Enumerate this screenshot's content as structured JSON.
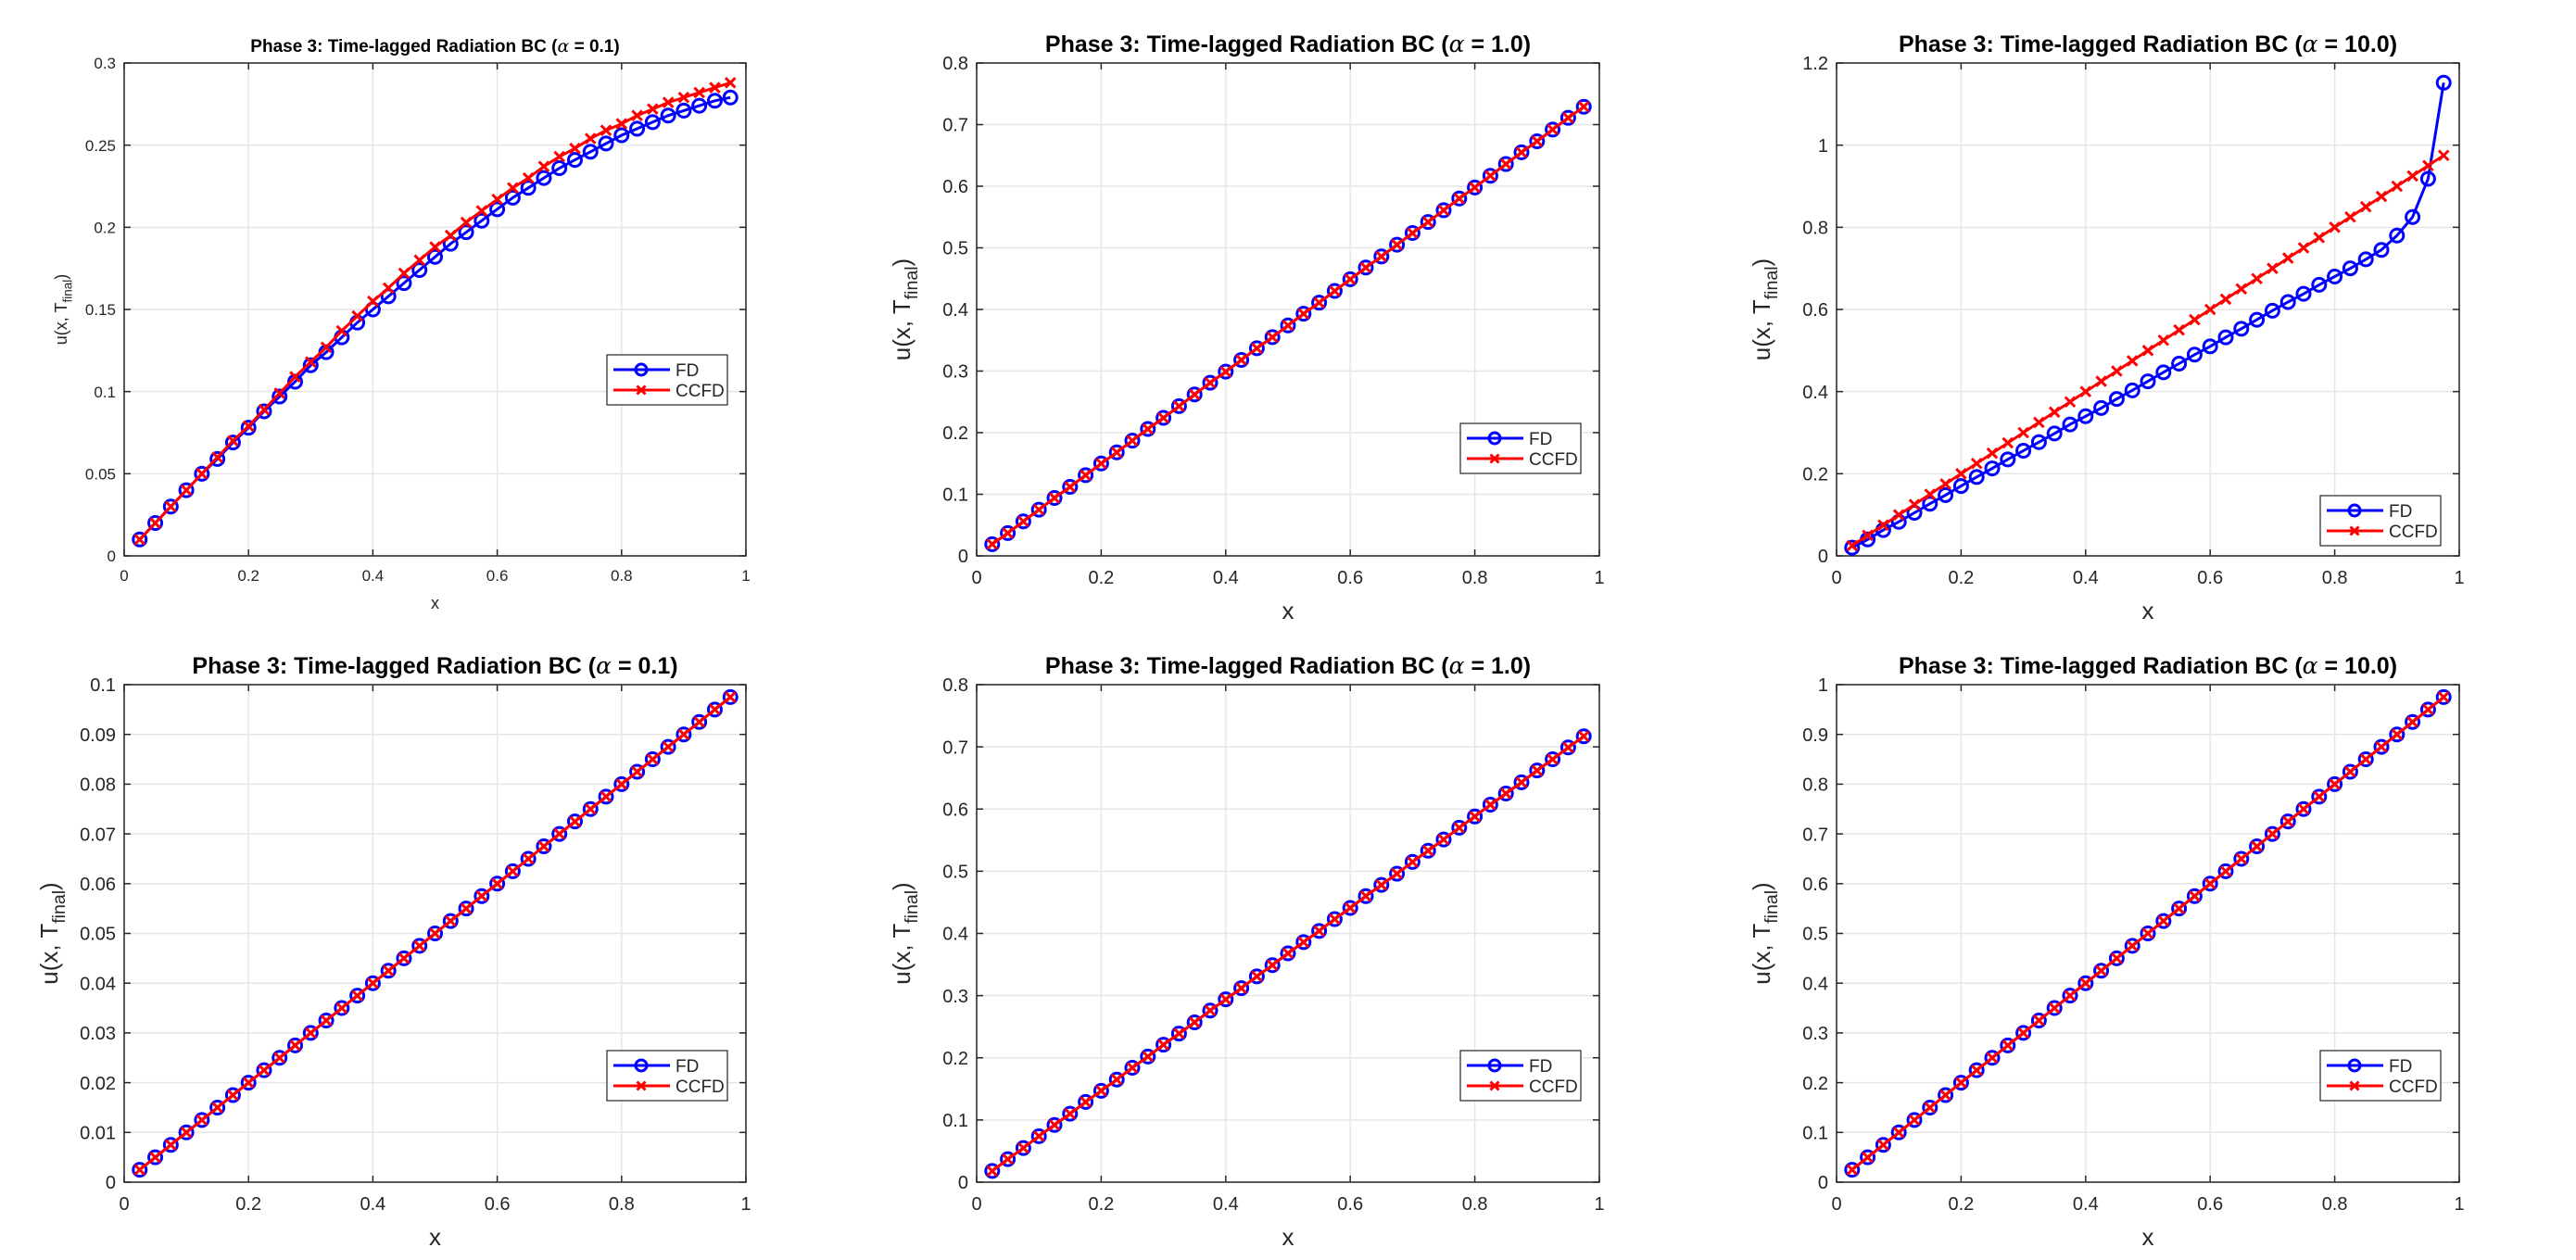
{
  "legend_labels": [
    "FD",
    "CCFD"
  ],
  "colors": {
    "FD": "#0000ff",
    "CCFD": "#ff0000",
    "grid": "#e6e6e6",
    "axis": "#262626"
  },
  "chart_data": [
    {
      "type": "line",
      "title_parts": [
        "Phase 3: Time-lagged Radiation BC (",
        "α",
        " = 0.1)"
      ],
      "xlabel": "x",
      "ylabel_parts": [
        "u(x, T",
        "final",
        ")"
      ],
      "xlim": [
        0,
        1
      ],
      "ylim": [
        0,
        0.3
      ],
      "xticks": [
        "0",
        "0.2",
        "0.4",
        "0.6",
        "0.8",
        "1"
      ],
      "yticks": [
        "0",
        "0.05",
        "0.1",
        "0.15",
        "0.2",
        "0.25",
        "0.3"
      ],
      "grid": true,
      "legend_position": "right",
      "x": [
        0.025,
        0.05,
        0.075,
        0.1,
        0.125,
        0.15,
        0.175,
        0.2,
        0.225,
        0.25,
        0.275,
        0.3,
        0.325,
        0.35,
        0.375,
        0.4,
        0.425,
        0.45,
        0.475,
        0.5,
        0.525,
        0.55,
        0.575,
        0.6,
        0.625,
        0.65,
        0.675,
        0.7,
        0.725,
        0.75,
        0.775,
        0.8,
        0.825,
        0.85,
        0.875,
        0.9,
        0.925,
        0.95,
        0.975
      ],
      "series": [
        {
          "name": "FD",
          "marker": "circle",
          "values": [
            0.01,
            0.02,
            0.03,
            0.04,
            0.05,
            0.059,
            0.069,
            0.078,
            0.088,
            0.097,
            0.106,
            0.116,
            0.124,
            0.133,
            0.142,
            0.15,
            0.158,
            0.166,
            0.174,
            0.182,
            0.19,
            0.197,
            0.204,
            0.211,
            0.218,
            0.224,
            0.23,
            0.236,
            0.241,
            0.246,
            0.251,
            0.256,
            0.26,
            0.264,
            0.268,
            0.271,
            0.274,
            0.277,
            0.279
          ]
        },
        {
          "name": "CCFD",
          "marker": "x",
          "values": [
            0.01,
            0.02,
            0.03,
            0.04,
            0.05,
            0.06,
            0.07,
            0.079,
            0.089,
            0.099,
            0.109,
            0.118,
            0.127,
            0.137,
            0.146,
            0.155,
            0.163,
            0.172,
            0.18,
            0.188,
            0.195,
            0.203,
            0.21,
            0.217,
            0.224,
            0.23,
            0.237,
            0.243,
            0.248,
            0.254,
            0.259,
            0.263,
            0.268,
            0.272,
            0.276,
            0.279,
            0.282,
            0.285,
            0.288
          ]
        }
      ]
    },
    {
      "type": "line",
      "title_parts": [
        "Phase 3: Time-lagged Radiation BC (",
        "α",
        " = 1.0)"
      ],
      "xlabel": "x",
      "ylabel_parts": [
        "u(x, T",
        "final",
        ")"
      ],
      "xlim": [
        0,
        1
      ],
      "ylim": [
        0,
        0.8
      ],
      "xticks": [
        "0",
        "0.2",
        "0.4",
        "0.6",
        "0.8",
        "1"
      ],
      "yticks": [
        "0",
        "0.1",
        "0.2",
        "0.3",
        "0.4",
        "0.5",
        "0.6",
        "0.7",
        "0.8"
      ],
      "grid": true,
      "legend_position": "right",
      "x": [
        0.025,
        0.05,
        0.075,
        0.1,
        0.125,
        0.15,
        0.175,
        0.2,
        0.225,
        0.25,
        0.275,
        0.3,
        0.325,
        0.35,
        0.375,
        0.4,
        0.425,
        0.45,
        0.475,
        0.5,
        0.525,
        0.55,
        0.575,
        0.6,
        0.625,
        0.65,
        0.675,
        0.7,
        0.725,
        0.75,
        0.775,
        0.8,
        0.825,
        0.85,
        0.875,
        0.9,
        0.925,
        0.95,
        0.975
      ],
      "series": [
        {
          "name": "FD",
          "marker": "circle",
          "values": [
            0.019,
            0.037,
            0.056,
            0.075,
            0.094,
            0.112,
            0.131,
            0.15,
            0.168,
            0.187,
            0.206,
            0.224,
            0.243,
            0.262,
            0.281,
            0.299,
            0.318,
            0.337,
            0.355,
            0.374,
            0.393,
            0.411,
            0.43,
            0.449,
            0.468,
            0.486,
            0.505,
            0.524,
            0.542,
            0.561,
            0.58,
            0.598,
            0.617,
            0.636,
            0.655,
            0.673,
            0.692,
            0.711,
            0.729
          ]
        },
        {
          "name": "CCFD",
          "marker": "x",
          "values": [
            0.019,
            0.037,
            0.056,
            0.075,
            0.094,
            0.112,
            0.131,
            0.15,
            0.168,
            0.187,
            0.206,
            0.224,
            0.243,
            0.262,
            0.281,
            0.299,
            0.318,
            0.337,
            0.355,
            0.374,
            0.393,
            0.411,
            0.43,
            0.449,
            0.468,
            0.486,
            0.505,
            0.524,
            0.542,
            0.561,
            0.58,
            0.598,
            0.617,
            0.636,
            0.655,
            0.673,
            0.692,
            0.711,
            0.729
          ]
        }
      ]
    },
    {
      "type": "line",
      "title_parts": [
        "Phase 3: Time-lagged Radiation BC (",
        "α",
        " = 10.0)"
      ],
      "xlabel": "x",
      "ylabel_parts": [
        "u(x, T",
        "final",
        ")"
      ],
      "xlim": [
        0,
        1
      ],
      "ylim": [
        0,
        1.2
      ],
      "xticks": [
        "0",
        "0.2",
        "0.4",
        "0.6",
        "0.8",
        "1"
      ],
      "yticks": [
        "0",
        "0.2",
        "0.4",
        "0.6",
        "0.8",
        "1",
        "1.2"
      ],
      "grid": true,
      "legend_position": "bottom-right",
      "x": [
        0.025,
        0.05,
        0.075,
        0.1,
        0.125,
        0.15,
        0.175,
        0.2,
        0.225,
        0.25,
        0.275,
        0.3,
        0.325,
        0.35,
        0.375,
        0.4,
        0.425,
        0.45,
        0.475,
        0.5,
        0.525,
        0.55,
        0.575,
        0.6,
        0.625,
        0.65,
        0.675,
        0.7,
        0.725,
        0.75,
        0.775,
        0.8,
        0.825,
        0.85,
        0.875,
        0.9,
        0.925,
        0.95,
        0.975
      ],
      "series": [
        {
          "name": "FD",
          "marker": "circle",
          "values": [
            0.02,
            0.04,
            0.063,
            0.083,
            0.105,
            0.127,
            0.148,
            0.17,
            0.192,
            0.213,
            0.235,
            0.256,
            0.277,
            0.298,
            0.32,
            0.34,
            0.36,
            0.382,
            0.403,
            0.425,
            0.447,
            0.468,
            0.49,
            0.51,
            0.532,
            0.553,
            0.575,
            0.597,
            0.618,
            0.638,
            0.66,
            0.68,
            0.7,
            0.722,
            0.745,
            0.78,
            0.825,
            0.918,
            1.152
          ]
        },
        {
          "name": "CCFD",
          "marker": "x",
          "values": [
            0.025,
            0.05,
            0.075,
            0.1,
            0.125,
            0.15,
            0.175,
            0.2,
            0.225,
            0.25,
            0.275,
            0.3,
            0.325,
            0.35,
            0.375,
            0.4,
            0.425,
            0.45,
            0.475,
            0.5,
            0.525,
            0.55,
            0.575,
            0.6,
            0.625,
            0.65,
            0.675,
            0.7,
            0.725,
            0.75,
            0.775,
            0.8,
            0.825,
            0.85,
            0.875,
            0.9,
            0.925,
            0.95,
            0.975
          ]
        }
      ]
    },
    {
      "type": "line",
      "title_parts": [
        "Phase 3: Time-lagged Radiation BC (",
        "α",
        " = 0.1)"
      ],
      "xlabel": "x",
      "ylabel_parts": [
        "u(x, T",
        "final",
        ")"
      ],
      "xlim": [
        0,
        1
      ],
      "ylim": [
        0,
        0.1
      ],
      "xticks": [
        "0",
        "0.2",
        "0.4",
        "0.6",
        "0.8",
        "1"
      ],
      "yticks": [
        "0",
        "0.01",
        "0.02",
        "0.03",
        "0.04",
        "0.05",
        "0.06",
        "0.07",
        "0.08",
        "0.09",
        "0.1"
      ],
      "grid": true,
      "legend_position": "right",
      "x": [
        0.025,
        0.05,
        0.075,
        0.1,
        0.125,
        0.15,
        0.175,
        0.2,
        0.225,
        0.25,
        0.275,
        0.3,
        0.325,
        0.35,
        0.375,
        0.4,
        0.425,
        0.45,
        0.475,
        0.5,
        0.525,
        0.55,
        0.575,
        0.6,
        0.625,
        0.65,
        0.675,
        0.7,
        0.725,
        0.75,
        0.775,
        0.8,
        0.825,
        0.85,
        0.875,
        0.9,
        0.925,
        0.95,
        0.975
      ],
      "series": [
        {
          "name": "FD",
          "marker": "circle",
          "values": [
            0.0025,
            0.005,
            0.0075,
            0.01,
            0.0125,
            0.015,
            0.0175,
            0.02,
            0.0225,
            0.025,
            0.0275,
            0.03,
            0.0325,
            0.035,
            0.0375,
            0.04,
            0.0425,
            0.045,
            0.0475,
            0.05,
            0.0525,
            0.055,
            0.0575,
            0.06,
            0.0625,
            0.065,
            0.0675,
            0.07,
            0.0725,
            0.075,
            0.0775,
            0.08,
            0.0825,
            0.085,
            0.0875,
            0.09,
            0.0925,
            0.095,
            0.0975
          ]
        },
        {
          "name": "CCFD",
          "marker": "x",
          "values": [
            0.0025,
            0.005,
            0.0075,
            0.01,
            0.0125,
            0.015,
            0.0175,
            0.02,
            0.0225,
            0.025,
            0.0275,
            0.03,
            0.0325,
            0.035,
            0.0375,
            0.04,
            0.0425,
            0.045,
            0.0475,
            0.05,
            0.0525,
            0.055,
            0.0575,
            0.06,
            0.0625,
            0.065,
            0.0675,
            0.07,
            0.0725,
            0.075,
            0.0775,
            0.08,
            0.0825,
            0.085,
            0.0875,
            0.09,
            0.0925,
            0.095,
            0.0975
          ]
        }
      ]
    },
    {
      "type": "line",
      "title_parts": [
        "Phase 3: Time-lagged Radiation BC (",
        "α",
        " = 1.0)"
      ],
      "xlabel": "x",
      "ylabel_parts": [
        "u(x, T",
        "final",
        ")"
      ],
      "xlim": [
        0,
        1
      ],
      "ylim": [
        0,
        0.8
      ],
      "xticks": [
        "0",
        "0.2",
        "0.4",
        "0.6",
        "0.8",
        "1"
      ],
      "yticks": [
        "0",
        "0.1",
        "0.2",
        "0.3",
        "0.4",
        "0.5",
        "0.6",
        "0.7",
        "0.8"
      ],
      "grid": true,
      "legend_position": "right",
      "x": [
        0.025,
        0.05,
        0.075,
        0.1,
        0.125,
        0.15,
        0.175,
        0.2,
        0.225,
        0.25,
        0.275,
        0.3,
        0.325,
        0.35,
        0.375,
        0.4,
        0.425,
        0.45,
        0.475,
        0.5,
        0.525,
        0.55,
        0.575,
        0.6,
        0.625,
        0.65,
        0.675,
        0.7,
        0.725,
        0.75,
        0.775,
        0.8,
        0.825,
        0.85,
        0.875,
        0.9,
        0.925,
        0.95,
        0.975
      ],
      "series": [
        {
          "name": "FD",
          "marker": "circle",
          "values": [
            0.018,
            0.037,
            0.055,
            0.074,
            0.092,
            0.11,
            0.129,
            0.147,
            0.165,
            0.184,
            0.202,
            0.221,
            0.239,
            0.257,
            0.276,
            0.294,
            0.312,
            0.331,
            0.349,
            0.368,
            0.386,
            0.404,
            0.423,
            0.441,
            0.46,
            0.478,
            0.496,
            0.515,
            0.533,
            0.551,
            0.57,
            0.588,
            0.607,
            0.625,
            0.643,
            0.662,
            0.68,
            0.699,
            0.717
          ]
        },
        {
          "name": "CCFD",
          "marker": "x",
          "values": [
            0.018,
            0.037,
            0.055,
            0.074,
            0.092,
            0.11,
            0.129,
            0.147,
            0.165,
            0.184,
            0.202,
            0.221,
            0.239,
            0.257,
            0.276,
            0.294,
            0.312,
            0.331,
            0.349,
            0.368,
            0.386,
            0.404,
            0.423,
            0.441,
            0.46,
            0.478,
            0.496,
            0.515,
            0.533,
            0.551,
            0.57,
            0.588,
            0.607,
            0.625,
            0.643,
            0.662,
            0.68,
            0.699,
            0.717
          ]
        }
      ]
    },
    {
      "type": "line",
      "title_parts": [
        "Phase 3: Time-lagged Radiation BC (",
        "α",
        " = 10.0)"
      ],
      "xlabel": "x",
      "ylabel_parts": [
        "u(x, T",
        "final",
        ")"
      ],
      "xlim": [
        0,
        1
      ],
      "ylim": [
        0,
        1
      ],
      "xticks": [
        "0",
        "0.2",
        "0.4",
        "0.6",
        "0.8",
        "1"
      ],
      "yticks": [
        "0",
        "0.1",
        "0.2",
        "0.3",
        "0.4",
        "0.5",
        "0.6",
        "0.7",
        "0.8",
        "0.9",
        "1"
      ],
      "grid": true,
      "legend_position": "right",
      "x": [
        0.025,
        0.05,
        0.075,
        0.1,
        0.125,
        0.15,
        0.175,
        0.2,
        0.225,
        0.25,
        0.275,
        0.3,
        0.325,
        0.35,
        0.375,
        0.4,
        0.425,
        0.45,
        0.475,
        0.5,
        0.525,
        0.55,
        0.575,
        0.6,
        0.625,
        0.65,
        0.675,
        0.7,
        0.725,
        0.75,
        0.775,
        0.8,
        0.825,
        0.85,
        0.875,
        0.9,
        0.925,
        0.95,
        0.975
      ],
      "series": [
        {
          "name": "FD",
          "marker": "circle",
          "values": [
            0.025,
            0.05,
            0.075,
            0.1,
            0.125,
            0.15,
            0.175,
            0.2,
            0.225,
            0.25,
            0.275,
            0.3,
            0.325,
            0.35,
            0.375,
            0.4,
            0.425,
            0.45,
            0.475,
            0.5,
            0.525,
            0.55,
            0.575,
            0.6,
            0.625,
            0.65,
            0.675,
            0.7,
            0.725,
            0.75,
            0.775,
            0.8,
            0.825,
            0.85,
            0.875,
            0.9,
            0.925,
            0.95,
            0.975
          ]
        },
        {
          "name": "CCFD",
          "marker": "x",
          "values": [
            0.025,
            0.05,
            0.075,
            0.1,
            0.125,
            0.15,
            0.175,
            0.2,
            0.225,
            0.25,
            0.275,
            0.3,
            0.325,
            0.35,
            0.375,
            0.4,
            0.425,
            0.45,
            0.475,
            0.5,
            0.525,
            0.55,
            0.575,
            0.6,
            0.625,
            0.65,
            0.675,
            0.7,
            0.725,
            0.75,
            0.775,
            0.8,
            0.825,
            0.85,
            0.875,
            0.9,
            0.925,
            0.95,
            0.975
          ]
        }
      ]
    }
  ]
}
